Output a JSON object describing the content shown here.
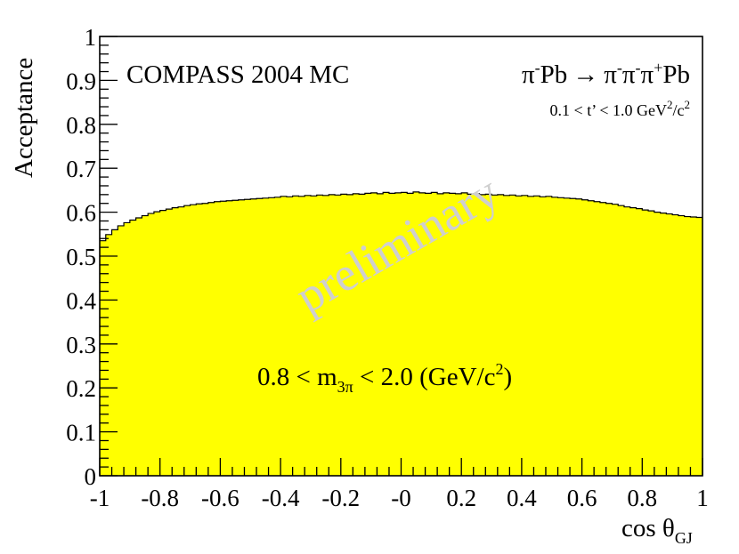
{
  "chart_data": {
    "type": "bar",
    "style": "filled histogram (step), yellow fill, black outline",
    "ylabel": "Acceptance",
    "xlabel_main": "cos θ",
    "xlabel_sub": "GJ",
    "xlim": [
      -1,
      1
    ],
    "ylim": [
      0,
      1
    ],
    "x_ticks": [
      "-1",
      "-0.8",
      "-0.6",
      "-0.4",
      "-0.2",
      "-0",
      "0.2",
      "0.4",
      "0.6",
      "0.8",
      "1"
    ],
    "y_ticks": [
      "0",
      "0.1",
      "0.2",
      "0.3",
      "0.4",
      "0.5",
      "0.6",
      "0.7",
      "0.8",
      "0.9",
      "1"
    ],
    "grid": false,
    "legend": "none",
    "fill_color": "#ffff00",
    "line_color": "#000000",
    "bins": 100,
    "values": [
      0.535,
      0.549,
      0.56,
      0.569,
      0.576,
      0.582,
      0.587,
      0.592,
      0.597,
      0.601,
      0.604,
      0.607,
      0.61,
      0.612,
      0.615,
      0.617,
      0.619,
      0.62,
      0.622,
      0.624,
      0.625,
      0.626,
      0.627,
      0.628,
      0.629,
      0.63,
      0.631,
      0.632,
      0.633,
      0.634,
      0.636,
      0.635,
      0.637,
      0.636,
      0.638,
      0.637,
      0.639,
      0.638,
      0.64,
      0.639,
      0.641,
      0.64,
      0.642,
      0.641,
      0.643,
      0.644,
      0.642,
      0.645,
      0.643,
      0.644,
      0.645,
      0.643,
      0.646,
      0.644,
      0.643,
      0.645,
      0.642,
      0.644,
      0.643,
      0.642,
      0.644,
      0.641,
      0.642,
      0.64,
      0.641,
      0.639,
      0.64,
      0.638,
      0.639,
      0.637,
      0.638,
      0.636,
      0.637,
      0.635,
      0.636,
      0.634,
      0.633,
      0.632,
      0.631,
      0.63,
      0.628,
      0.626,
      0.624,
      0.622,
      0.62,
      0.618,
      0.615,
      0.612,
      0.61,
      0.608,
      0.605,
      0.603,
      0.6,
      0.598,
      0.596,
      0.594,
      0.592,
      0.59,
      0.589,
      0.588
    ],
    "annotations": {
      "experiment": "COMPASS 2004 MC",
      "reaction": {
        "pi1": "π",
        "m1": "-",
        "pb1": "Pb",
        "arrow": "→",
        "pi2": "π",
        "m2": "-",
        "pi3": "π",
        "m3": "-",
        "pi4": "π",
        "p4": "+",
        "pb2": "Pb"
      },
      "t_cut": {
        "main": "0.1 < t’ < 1.0 GeV",
        "sup1": "2",
        "mid": "/c",
        "sup2": "2"
      },
      "mass_cut": {
        "lead": "0.8 < m",
        "sub": "3π",
        "mid": " < 2.0 (GeV/c",
        "sup": "2",
        "tail": ")"
      },
      "watermark": "preliminary"
    }
  }
}
